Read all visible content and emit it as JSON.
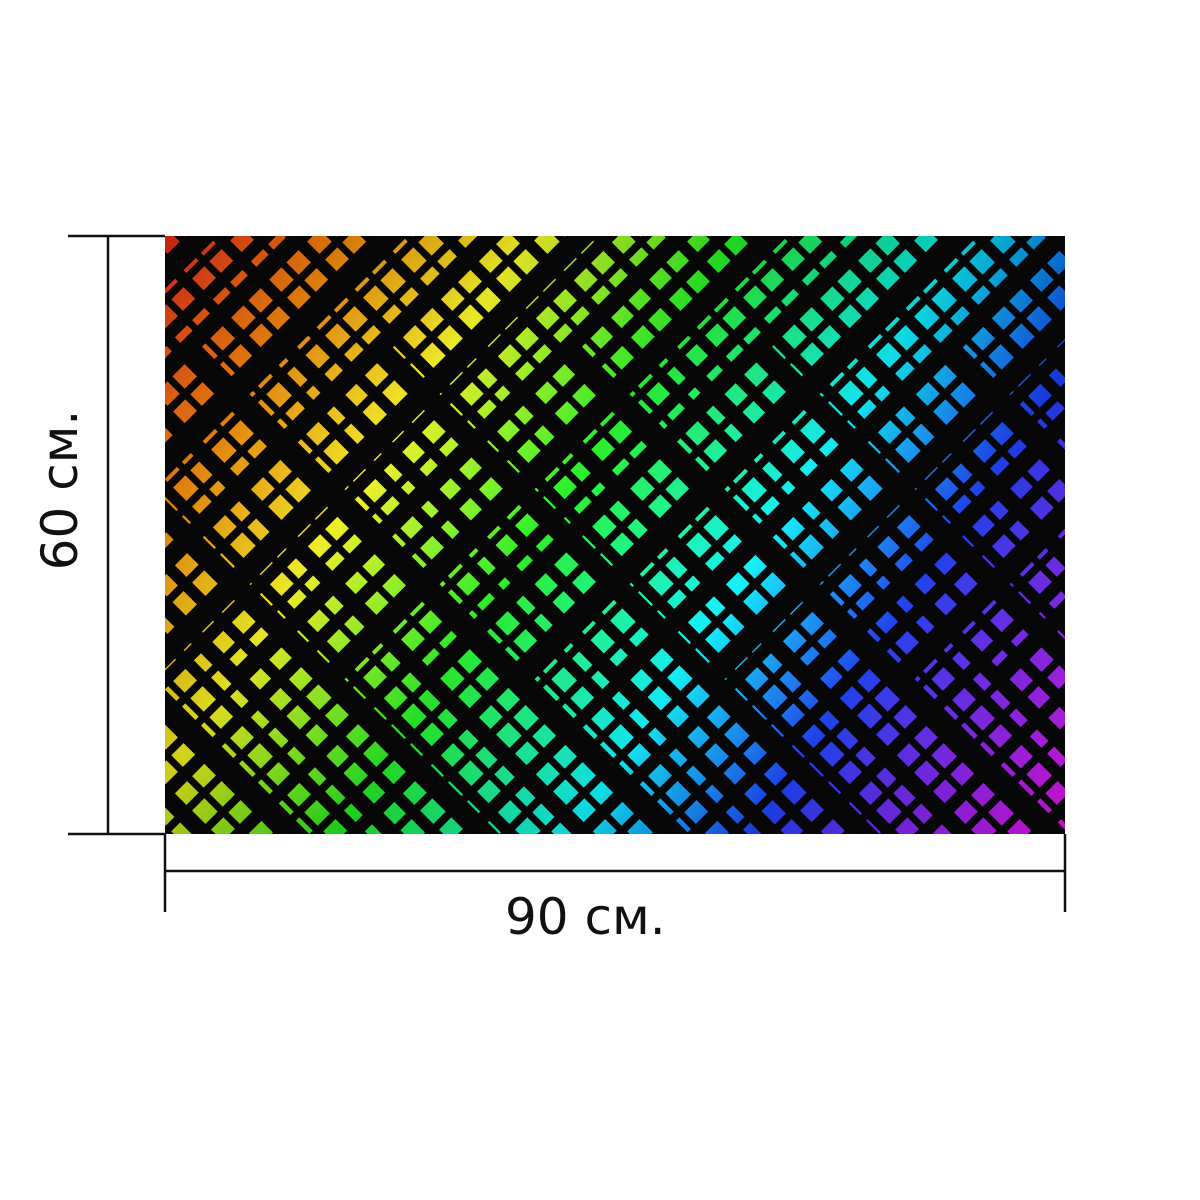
{
  "product": {
    "pattern": "rainbow-diagonal-lattice",
    "colors": {
      "red": "#ff2a1a",
      "orange": "#ff8a00",
      "yellow": "#ffff1a",
      "green": "#18f218",
      "cyan": "#00f5ff",
      "blue": "#1238ff",
      "violet": "#8a20ff",
      "magenta": "#ff14ff",
      "lines": "#070707"
    }
  },
  "dimensions": {
    "width_label": "90 см.",
    "height_label": "60 см."
  }
}
